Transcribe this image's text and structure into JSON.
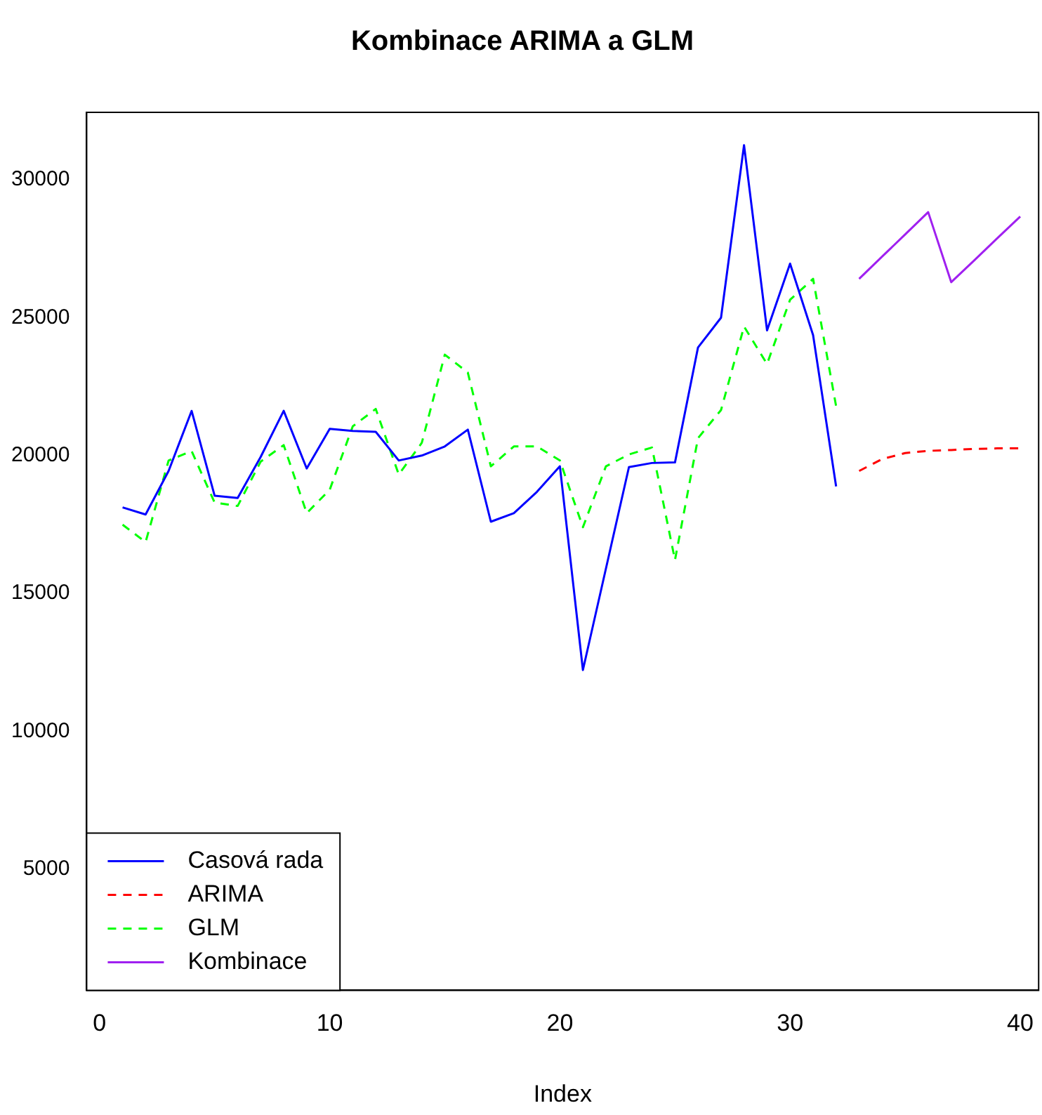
{
  "chart_data": {
    "type": "line",
    "title": "Kombinace ARIMA a GLM",
    "xlabel": "Index",
    "xlim": [
      -0.56,
      40.8
    ],
    "xticks": [
      0,
      10,
      20,
      30,
      40
    ],
    "ylim": [
      600,
      32450
    ],
    "yticks": [
      5000,
      10000,
      15000,
      20000,
      25000,
      30000
    ],
    "grid": false,
    "legend": "bottom left",
    "marker": "none",
    "series": [
      {
        "name": "Casová rada",
        "color": "#0000ff",
        "line_style": "solid",
        "x": [
          1,
          2,
          3,
          4,
          5,
          6,
          7,
          8,
          9,
          10,
          11,
          12,
          13,
          14,
          15,
          16,
          17,
          18,
          19,
          20,
          21,
          22,
          23,
          24,
          25,
          26,
          27,
          28,
          29,
          30,
          31,
          32
        ],
        "values": [
          18120,
          17860,
          19440,
          21620,
          18540,
          18460,
          19950,
          21620,
          19530,
          20970,
          20890,
          20860,
          19820,
          20000,
          20330,
          20940,
          17600,
          17910,
          18680,
          19610,
          12220,
          15900,
          19580,
          19730,
          19750,
          23920,
          25000,
          31260,
          24540,
          26960,
          24370,
          18880
        ]
      },
      {
        "name": "ARIMA",
        "color": "#ff0000",
        "line_style": "dashed",
        "x": [
          33,
          34,
          35,
          36,
          37,
          38,
          39,
          40
        ],
        "values": [
          19440,
          19870,
          20090,
          20170,
          20200,
          20240,
          20260,
          20260
        ]
      },
      {
        "name": "GLM",
        "color": "#00ff00",
        "line_style": "dashed",
        "x": [
          1,
          2,
          3,
          4,
          5,
          6,
          7,
          8,
          9,
          10,
          11,
          12,
          13,
          14,
          15,
          16,
          17,
          18,
          19,
          20,
          21,
          22,
          23,
          24,
          25,
          26,
          27,
          28,
          29,
          30,
          31,
          32
        ],
        "values": [
          17490,
          16860,
          19820,
          20160,
          18290,
          18170,
          19780,
          20380,
          17910,
          18760,
          21060,
          21690,
          19310,
          20460,
          23660,
          23010,
          19610,
          20330,
          20330,
          19820,
          17400,
          19610,
          20040,
          20290,
          16210,
          20630,
          21650,
          24680,
          23320,
          25650,
          26410,
          21790
        ]
      },
      {
        "name": "Kombinace",
        "color": "#a020f0",
        "line_style": "solid",
        "x": [
          33,
          34,
          35,
          36,
          37,
          38,
          39,
          40
        ],
        "values": [
          26410,
          27220,
          28020,
          28830,
          26290,
          27080,
          27880,
          28670
        ]
      }
    ]
  }
}
